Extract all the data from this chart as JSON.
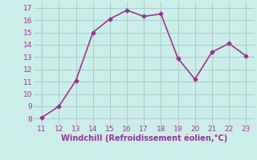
{
  "x": [
    11,
    12,
    13,
    14,
    15,
    16,
    17,
    18,
    19,
    20,
    21,
    22,
    23
  ],
  "y": [
    8.1,
    9.0,
    11.1,
    15.0,
    16.1,
    16.8,
    16.3,
    16.5,
    12.9,
    11.2,
    13.4,
    14.1,
    13.1
  ],
  "line_color": "#993399",
  "marker": "D",
  "marker_size": 2.5,
  "background_color": "#cceee8",
  "grid_color": "#aacccc",
  "xlabel": "Windchill (Refroidissement éolien,°C)",
  "xlabel_color": "#993399",
  "tick_color": "#993399",
  "xlim": [
    10.5,
    23.5
  ],
  "ylim": [
    7.5,
    17.5
  ],
  "xticks": [
    11,
    12,
    13,
    14,
    15,
    16,
    17,
    18,
    19,
    20,
    21,
    22,
    23
  ],
  "yticks": [
    8,
    9,
    10,
    11,
    12,
    13,
    14,
    15,
    16,
    17
  ],
  "line_width": 1.2,
  "tick_fontsize": 6.5,
  "xlabel_fontsize": 7.0
}
